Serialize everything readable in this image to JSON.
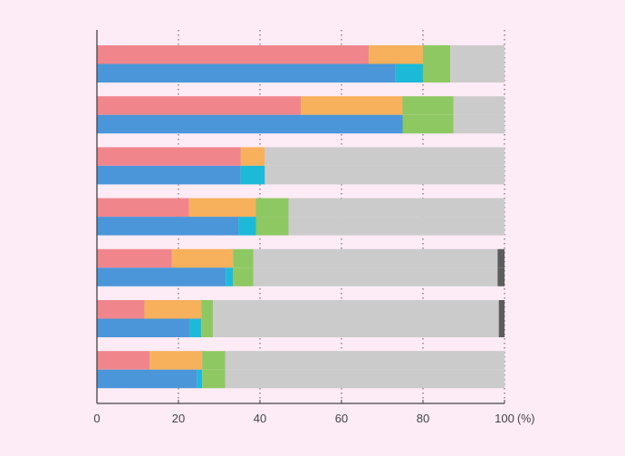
{
  "chart_data": {
    "type": "bar",
    "orientation": "horizontal",
    "stacked": true,
    "xlim": [
      0,
      100
    ],
    "x_ticks": [
      0,
      20,
      40,
      60,
      80,
      100
    ],
    "x_unit_label": "(%)",
    "grid": "vertical dotted at 20, 40, 60, 80, 100",
    "legend": "none",
    "groups": [
      {
        "top": [
          {
            "from": 0,
            "to": 66.7,
            "color": "#f0868c"
          },
          {
            "from": 66.7,
            "to": 80.0,
            "color": "#f7b05b"
          },
          {
            "from": 80.0,
            "to": 86.7,
            "color": "#8ec862"
          },
          {
            "from": 86.7,
            "to": 100,
            "color": "#cbcbcb"
          }
        ],
        "bottom": [
          {
            "from": 0,
            "to": 73.3,
            "color": "#4a96d9"
          },
          {
            "from": 73.3,
            "to": 80.0,
            "color": "#1cbad8"
          },
          {
            "from": 80.0,
            "to": 86.7,
            "color": "#8ec862"
          },
          {
            "from": 86.7,
            "to": 100,
            "color": "#cbcbcb"
          }
        ]
      },
      {
        "top": [
          {
            "from": 0,
            "to": 50.0,
            "color": "#f0868c"
          },
          {
            "from": 50.0,
            "to": 75.0,
            "color": "#f7b05b"
          },
          {
            "from": 75.0,
            "to": 87.5,
            "color": "#8ec862"
          },
          {
            "from": 87.5,
            "to": 100,
            "color": "#cbcbcb"
          }
        ],
        "bottom": [
          {
            "from": 0,
            "to": 75.0,
            "color": "#4a96d9"
          },
          {
            "from": 75.0,
            "to": 87.5,
            "color": "#8ec862"
          },
          {
            "from": 87.5,
            "to": 100,
            "color": "#cbcbcb"
          }
        ]
      },
      {
        "top": [
          {
            "from": 0,
            "to": 35.3,
            "color": "#f0868c"
          },
          {
            "from": 35.3,
            "to": 41.2,
            "color": "#f7b05b"
          },
          {
            "from": 41.2,
            "to": 100,
            "color": "#cbcbcb"
          }
        ],
        "bottom": [
          {
            "from": 0,
            "to": 35.3,
            "color": "#4a96d9"
          },
          {
            "from": 35.3,
            "to": 41.2,
            "color": "#1cbad8"
          },
          {
            "from": 41.2,
            "to": 100,
            "color": "#cbcbcb"
          }
        ]
      },
      {
        "top": [
          {
            "from": 0,
            "to": 22.6,
            "color": "#f0868c"
          },
          {
            "from": 22.6,
            "to": 39.0,
            "color": "#f7b05b"
          },
          {
            "from": 39.0,
            "to": 47.0,
            "color": "#8ec862"
          },
          {
            "from": 47.0,
            "to": 100,
            "color": "#cbcbcb"
          }
        ],
        "bottom": [
          {
            "from": 0,
            "to": 34.8,
            "color": "#4a96d9"
          },
          {
            "from": 34.8,
            "to": 39.0,
            "color": "#1cbad8"
          },
          {
            "from": 39.0,
            "to": 47.0,
            "color": "#8ec862"
          },
          {
            "from": 47.0,
            "to": 100,
            "color": "#cbcbcb"
          }
        ]
      },
      {
        "top": [
          {
            "from": 0,
            "to": 18.4,
            "color": "#f0868c"
          },
          {
            "from": 18.4,
            "to": 33.4,
            "color": "#f7b05b"
          },
          {
            "from": 33.4,
            "to": 38.4,
            "color": "#8ec862"
          },
          {
            "from": 38.4,
            "to": 98.3,
            "color": "#cbcbcb"
          },
          {
            "from": 98.3,
            "to": 100,
            "color": "#5d5d5d"
          }
        ],
        "bottom": [
          {
            "from": 0,
            "to": 31.6,
            "color": "#4a96d9"
          },
          {
            "from": 31.6,
            "to": 33.4,
            "color": "#1cbad8"
          },
          {
            "from": 33.4,
            "to": 38.4,
            "color": "#8ec862"
          },
          {
            "from": 38.4,
            "to": 98.3,
            "color": "#cbcbcb"
          },
          {
            "from": 98.3,
            "to": 100,
            "color": "#5d5d5d"
          }
        ]
      },
      {
        "top": [
          {
            "from": 0,
            "to": 11.7,
            "color": "#f0868c"
          },
          {
            "from": 11.7,
            "to": 25.6,
            "color": "#f7b05b"
          },
          {
            "from": 25.6,
            "to": 28.5,
            "color": "#8ec862"
          },
          {
            "from": 28.5,
            "to": 98.6,
            "color": "#cbcbcb"
          },
          {
            "from": 98.6,
            "to": 100,
            "color": "#5d5d5d"
          }
        ],
        "bottom": [
          {
            "from": 0,
            "to": 22.8,
            "color": "#4a96d9"
          },
          {
            "from": 22.8,
            "to": 25.6,
            "color": "#1cbad8"
          },
          {
            "from": 25.6,
            "to": 28.5,
            "color": "#8ec862"
          },
          {
            "from": 28.5,
            "to": 98.6,
            "color": "#cbcbcb"
          },
          {
            "from": 98.6,
            "to": 100,
            "color": "#5d5d5d"
          }
        ]
      },
      {
        "top": [
          {
            "from": 0,
            "to": 12.9,
            "color": "#f0868c"
          },
          {
            "from": 12.9,
            "to": 25.8,
            "color": "#f7b05b"
          },
          {
            "from": 25.8,
            "to": 31.5,
            "color": "#8ec862"
          },
          {
            "from": 31.5,
            "to": 100,
            "color": "#cbcbcb"
          }
        ],
        "bottom": [
          {
            "from": 0,
            "to": 24.6,
            "color": "#4a96d9"
          },
          {
            "from": 24.6,
            "to": 25.8,
            "color": "#1cbad8"
          },
          {
            "from": 25.8,
            "to": 31.5,
            "color": "#8ec862"
          },
          {
            "from": 31.5,
            "to": 100,
            "color": "#cbcbcb"
          }
        ]
      }
    ]
  }
}
